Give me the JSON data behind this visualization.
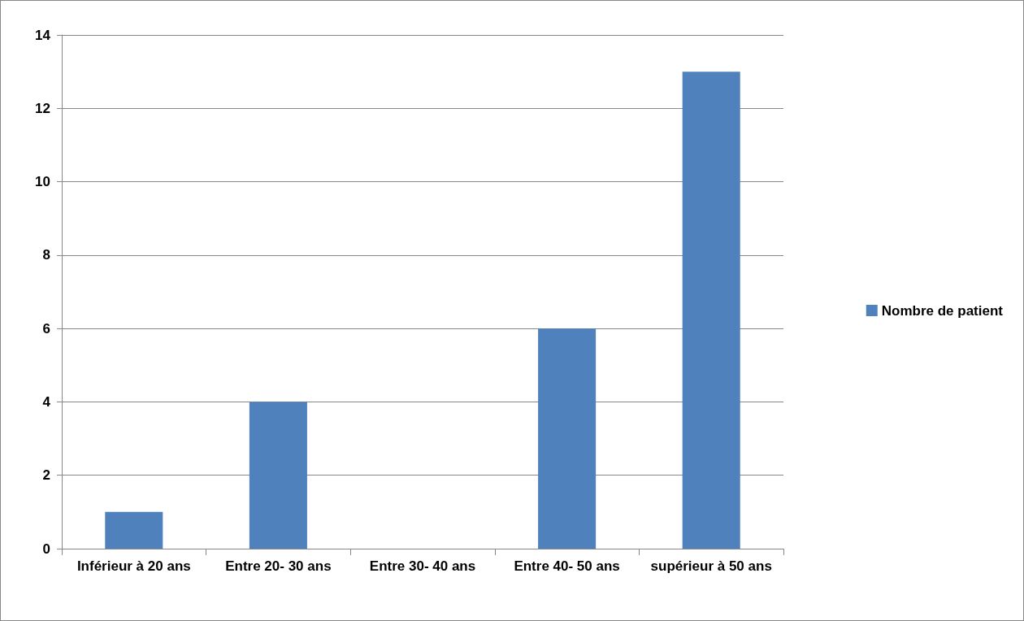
{
  "chart_data": {
    "type": "bar",
    "categories": [
      "Inférieur à 20 ans",
      "Entre 20- 30 ans",
      "Entre 30- 40 ans",
      "Entre 40- 50 ans",
      "supérieur à 50 ans"
    ],
    "series": [
      {
        "name": "Nombre de patient",
        "color": "#4f81bd",
        "values": [
          1,
          4,
          0,
          6,
          13
        ]
      }
    ],
    "ylim": [
      0,
      14
    ],
    "yticks": [
      0,
      2,
      4,
      6,
      8,
      10,
      12,
      14
    ],
    "grid": "y",
    "legend": "right"
  }
}
